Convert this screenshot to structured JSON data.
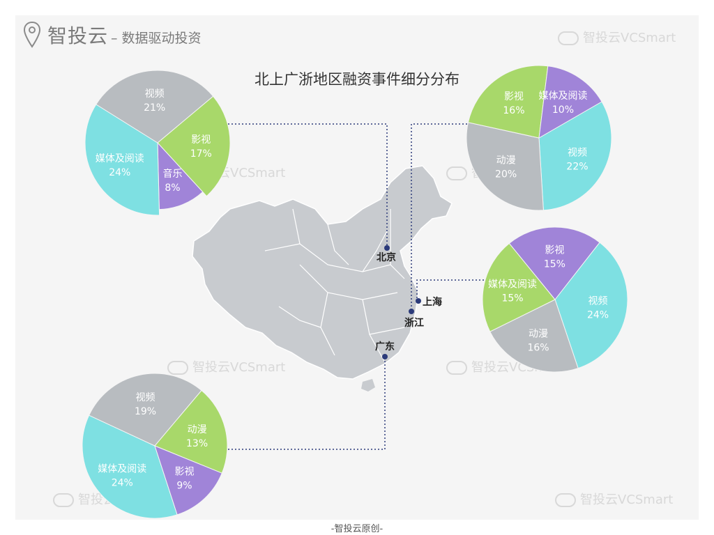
{
  "brand": {
    "name": "智投云",
    "tagline": "– 数据驱动投资"
  },
  "watermark": "智投云VCSmart",
  "footer": "-智投云原创-",
  "colors": {
    "视频": "#b8bcc0",
    "媒体及阅读": "#7ee0e2",
    "影视": "#a8d86a",
    "音乐": "#a084d8",
    "动漫": "#b8bcc0",
    "map": "#c8cbcf",
    "line": "#2b3a7a"
  },
  "cities": [
    "北京",
    "上海",
    "浙江",
    "广东"
  ],
  "chart_data": [
    {
      "type": "pie",
      "title": "北上广浙地区融资事件细分分布",
      "slices": [
        {
          "label": "影视",
          "value": 17,
          "color": "#a8d86a"
        },
        {
          "label": "音乐",
          "value": 8,
          "color": "#a084d8"
        },
        {
          "label": "媒体及阅读",
          "value": 24,
          "color": "#7ee0e2"
        },
        {
          "label": "视频",
          "value": 21,
          "color": "#b8bcc0"
        }
      ]
    },
    {
      "type": "pie",
      "slices": [
        {
          "label": "视频",
          "value": 22,
          "color": "#7ee0e2"
        },
        {
          "label": "动漫",
          "value": 20,
          "color": "#b8bcc0"
        },
        {
          "label": "影视",
          "value": 16,
          "color": "#a8d86a"
        },
        {
          "label": "媒体及阅读",
          "value": 10,
          "color": "#a084d8"
        }
      ]
    },
    {
      "type": "pie",
      "slices": [
        {
          "label": "视频",
          "value": 24,
          "color": "#7ee0e2"
        },
        {
          "label": "动漫",
          "value": 16,
          "color": "#b8bcc0"
        },
        {
          "label": "媒体及阅读",
          "value": 15,
          "color": "#a8d86a"
        },
        {
          "label": "影视",
          "value": 15,
          "color": "#a084d8"
        }
      ]
    },
    {
      "type": "pie",
      "slices": [
        {
          "label": "媒体及阅读",
          "value": 24,
          "color": "#7ee0e2"
        },
        {
          "label": "视频",
          "value": 19,
          "color": "#b8bcc0"
        },
        {
          "label": "动漫",
          "value": 13,
          "color": "#a8d86a"
        },
        {
          "label": "影视",
          "value": 9,
          "color": "#a084d8"
        }
      ]
    }
  ]
}
